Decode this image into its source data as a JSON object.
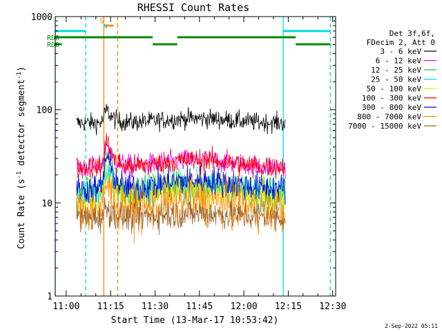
{
  "chart_data": {
    "type": "line",
    "title": "RHESSI Count Rates",
    "xlabel": "Start Time (13-Mar-17 10:53:42)",
    "ylabel_main": "Count Rate (s",
    "ylabel_sup1": "-1",
    "ylabel_mid": " detector segment",
    "ylabel_sup2": "-1",
    "ylabel_end": ")",
    "yscale": "log",
    "ylim": [
      1,
      1000
    ],
    "xlim_minutes": [
      -3.7,
      91
    ],
    "x_ticks": [
      {
        "label": "11:00",
        "minute": 0
      },
      {
        "label": "11:15",
        "minute": 15
      },
      {
        "label": "11:30",
        "minute": 30
      },
      {
        "label": "11:45",
        "minute": 45
      },
      {
        "label": "12:00",
        "minute": 60
      },
      {
        "label": "12:15",
        "minute": 75
      },
      {
        "label": "12:30",
        "minute": 90
      }
    ],
    "y_ticks": [
      {
        "label": "1",
        "value": 1
      },
      {
        "label": "10",
        "value": 10
      },
      {
        "label": "100",
        "value": 100
      },
      {
        "label": "1000",
        "value": 1000
      }
    ],
    "legend_header": [
      "Det 3f,6f,",
      "FDecim 2, Att 0"
    ],
    "series": [
      {
        "name": "3 - 6 keV",
        "color": "#000000",
        "base": 72,
        "flare_peak": 100,
        "bump": 1.12,
        "noise": 0.05
      },
      {
        "name": "6 - 12 keV",
        "color": "#e000e0",
        "base": 24,
        "flare_peak": 44,
        "bump": 1.2,
        "noise": 0.06
      },
      {
        "name": "12 - 25 keV",
        "color": "#22cc22",
        "base": 13,
        "flare_peak": 30,
        "bump": 1.25,
        "noise": 0.08
      },
      {
        "name": "25 - 50 keV",
        "color": "#00dddd",
        "base": 12,
        "flare_peak": 26,
        "bump": 1.25,
        "noise": 0.09
      },
      {
        "name": "50 - 100 keV",
        "color": "#e8e800",
        "base": 11,
        "flare_peak": 22,
        "bump": 1.25,
        "noise": 0.09
      },
      {
        "name": "100 - 300 keV",
        "color": "#ff0000",
        "base": 24,
        "flare_peak": 46,
        "bump": 1.2,
        "noise": 0.06
      },
      {
        "name": "300 - 800 keV",
        "color": "#0000ee",
        "base": 14,
        "flare_peak": 32,
        "bump": 1.25,
        "noise": 0.08
      },
      {
        "name": "800 - 7000 keV",
        "color": "#ff8800",
        "base": 8,
        "flare_peak": 16,
        "bump": 1.3,
        "noise": 0.12
      },
      {
        "name": "7000 - 15000 keV",
        "color": "#996633",
        "base": 7,
        "flare_peak": 9,
        "bump": 1.1,
        "noise": 0.08
      }
    ],
    "data_range_minutes": [
      3.5,
      74
    ],
    "flare_peak_minute": 13.8,
    "vertical_lines": [
      {
        "minute": -3.7,
        "color": "#00dddd",
        "style": "solid"
      },
      {
        "minute": 6.6,
        "color": "#00dddd",
        "style": "dashed"
      },
      {
        "minute": 12.7,
        "color": "#ff8800",
        "style": "solid"
      },
      {
        "minute": 17.4,
        "color": "#ff8800",
        "style": "dashed"
      },
      {
        "minute": 73.3,
        "color": "#00dddd",
        "style": "solid"
      },
      {
        "minute": 89.2,
        "color": "#00dddd",
        "style": "dashed"
      }
    ],
    "flag_bars": [
      {
        "label": "RD0",
        "color": "#008800",
        "y": 600,
        "segments": [
          [
            -3.7,
            29.2
          ],
          [
            37.5,
            77.5
          ]
        ]
      },
      {
        "label": "RD6",
        "color": "#008800",
        "y": 505,
        "segments": [
          [
            -3.7,
            -1.5
          ],
          [
            29.2,
            37.5
          ],
          [
            77.5,
            89.2
          ]
        ]
      },
      {
        "label": "",
        "color": "#00dddd",
        "y": 700,
        "segments": [
          [
            -3.7,
            6.6
          ],
          [
            73.3,
            89.2
          ]
        ]
      },
      {
        "label": "",
        "color": "#ff8800",
        "y": 800,
        "segments": [
          [
            12.7,
            16.0
          ]
        ]
      }
    ],
    "flag_letters": [
      {
        "text": "S",
        "color": "#ff8800",
        "minute": 11.3,
        "value": 850
      },
      {
        "text": "N",
        "color": "#00dddd",
        "minute": 12.6,
        "value": 740
      }
    ]
  },
  "footer_date": "2-Sep-2022 05:11"
}
